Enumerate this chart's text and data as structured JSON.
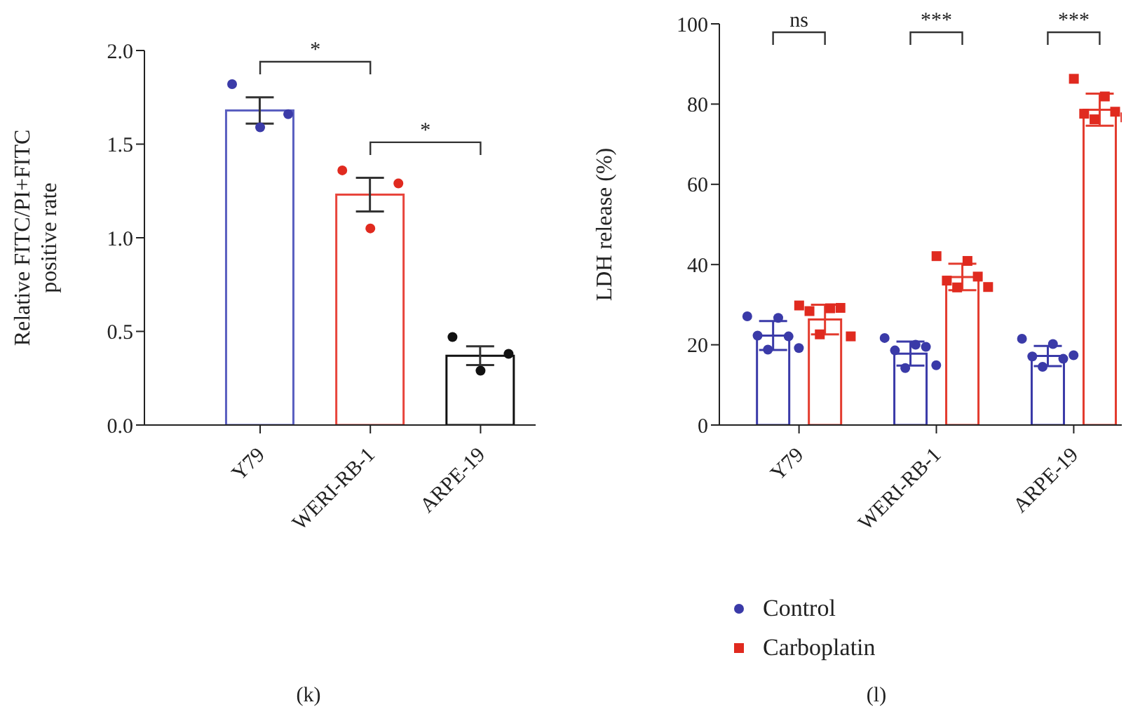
{
  "chart_data": [
    {
      "type": "bar",
      "title": "(k)",
      "ylabel": "Relative FITC/PI+FITC positive rate",
      "categories": [
        "Y79",
        "WERI-RB-1",
        "ARPE-19"
      ],
      "series": [
        {
          "type": "bar",
          "colors": [
            "#5a5fc0",
            "#e8453c",
            "#111111"
          ],
          "values": [
            1.68,
            1.23,
            0.37
          ],
          "errors": [
            0.07,
            0.09,
            0.05
          ]
        },
        {
          "type": "scatter",
          "marker": "circle",
          "x": [
            "Y79",
            "Y79",
            "Y79",
            "WERI-RB-1",
            "WERI-RB-1",
            "WERI-RB-1",
            "ARPE-19",
            "ARPE-19",
            "ARPE-19"
          ],
          "values": [
            1.82,
            1.66,
            1.59,
            1.36,
            1.29,
            1.05,
            0.47,
            0.38,
            0.29
          ],
          "colors": [
            "#3b3ba8",
            "#3b3ba8",
            "#3b3ba8",
            "#e02a1f",
            "#e02a1f",
            "#e02a1f",
            "#111111",
            "#111111",
            "#111111"
          ]
        }
      ],
      "ylim": [
        0,
        2
      ],
      "yticks": [
        {
          "value": 0,
          "label": "0.0"
        },
        {
          "value": 0.5,
          "label": "0.5"
        },
        {
          "value": 1,
          "label": "1.0"
        },
        {
          "value": 1.5,
          "label": "1.5"
        },
        {
          "value": 2,
          "label": "2.0"
        }
      ],
      "annotations": [
        "*",
        "*"
      ],
      "grid": false,
      "legend": false
    },
    {
      "type": "bar",
      "title": "(l)",
      "ylabel": "LDH release (%)",
      "categories": [
        "Y79",
        "WERI-RB-1",
        "ARPE-19"
      ],
      "series": [
        {
          "type": "bar",
          "color": "#3a3aa8",
          "values": [
            22.3,
            17.8,
            17.2
          ],
          "errors": [
            3.6,
            3.0,
            2.5
          ]
        },
        {
          "type": "bar",
          "color": "#e33b2e",
          "values": [
            26.3,
            36.9,
            78.6
          ],
          "errors": [
            3.7,
            3.3,
            4.0
          ]
        },
        {
          "type": "scatter",
          "name": "Control",
          "marker": "circle",
          "color": "#3a3aa8",
          "x": [
            "Y79",
            "Y79",
            "Y79",
            "Y79",
            "Y79",
            "Y79",
            "WERI-RB-1",
            "WERI-RB-1",
            "WERI-RB-1",
            "WERI-RB-1",
            "WERI-RB-1",
            "WERI-RB-1",
            "ARPE-19",
            "ARPE-19",
            "ARPE-19",
            "ARPE-19",
            "ARPE-19",
            "ARPE-19"
          ],
          "values": [
            27.1,
            26.7,
            22.3,
            22.1,
            18.8,
            19.2,
            21.7,
            20.0,
            18.6,
            19.5,
            14.2,
            14.9,
            21.5,
            20.2,
            17.1,
            16.5,
            14.5,
            17.4
          ]
        },
        {
          "type": "scatter",
          "name": "Carboplatin",
          "marker": "square",
          "color": "#e02a1f",
          "x": [
            "Y79",
            "Y79",
            "Y79",
            "Y79",
            "Y79",
            "Y79",
            "WERI-RB-1",
            "WERI-RB-1",
            "WERI-RB-1",
            "WERI-RB-1",
            "WERI-RB-1",
            "WERI-RB-1",
            "ARPE-19",
            "ARPE-19",
            "ARPE-19",
            "ARPE-19",
            "ARPE-19",
            "ARPE-19"
          ],
          "values": [
            29.8,
            29.1,
            28.4,
            29.2,
            22.6,
            22.1,
            42.1,
            40.9,
            36.0,
            37.0,
            34.3,
            34.4,
            86.3,
            81.9,
            77.6,
            78.1,
            76.2,
            76.7
          ]
        }
      ],
      "ylim": [
        0,
        100
      ],
      "yticks": [
        0,
        20,
        40,
        60,
        80,
        100
      ],
      "annotations": [
        "ns",
        "***",
        "***"
      ],
      "grid": false,
      "legend": "bottom"
    }
  ]
}
